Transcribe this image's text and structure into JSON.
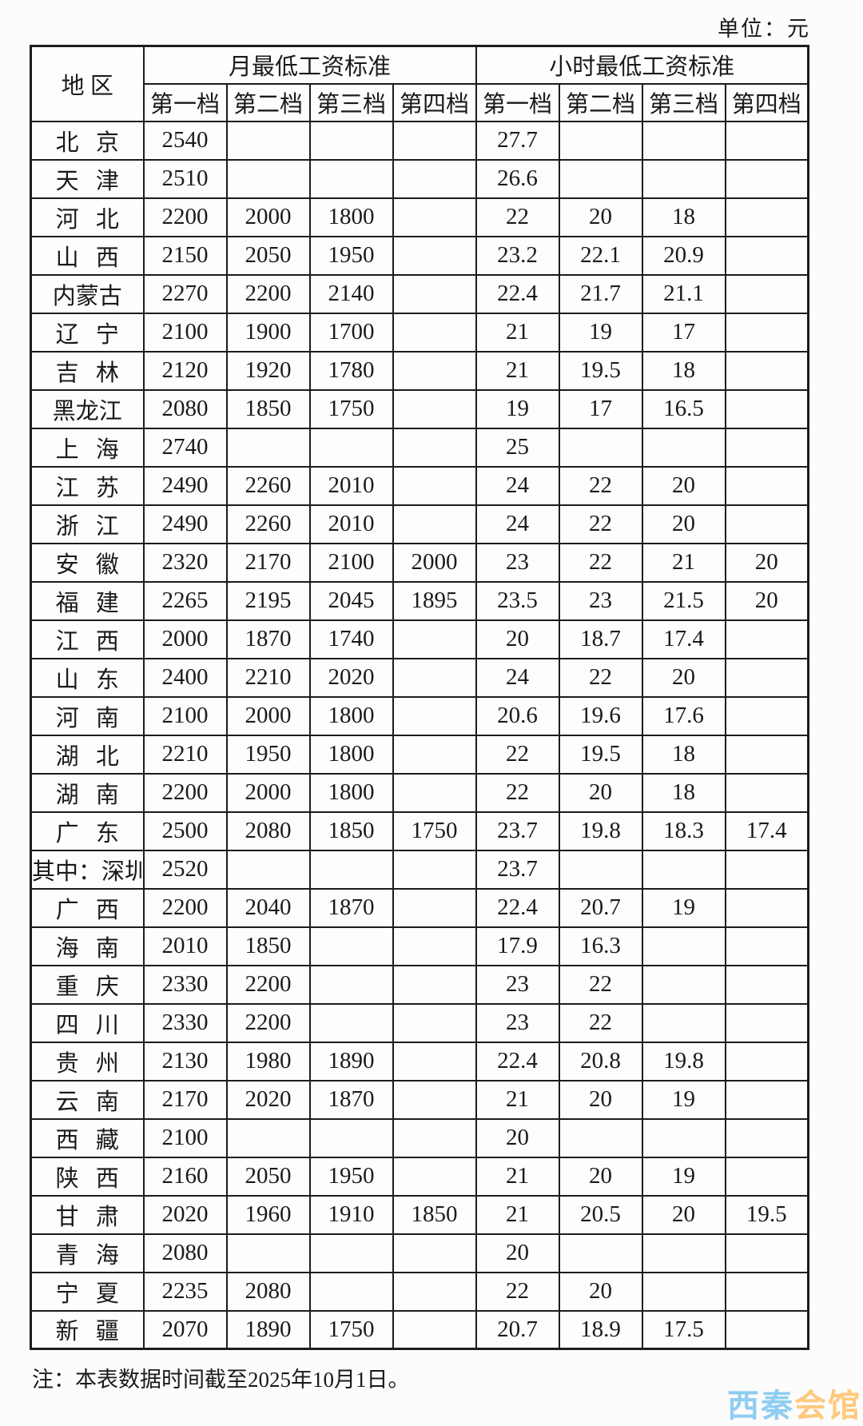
{
  "unit_label": "单位：元",
  "note": "注：本表数据时间截至2025年10月1日。",
  "watermark": {
    "part1": "西秦",
    "part2": "会馆",
    "color1": "#8fcdf2",
    "color2": "#ffc97e"
  },
  "table": {
    "region_header": "地 区",
    "monthly_group": "月最低工资标准",
    "hourly_group": "小时最低工资标准",
    "tier_labels": [
      "第一档",
      "第二档",
      "第三档",
      "第四档"
    ],
    "rows": [
      {
        "region": "北 京",
        "monthly": [
          "2540",
          "",
          "",
          ""
        ],
        "hourly": [
          "27.7",
          "",
          "",
          ""
        ]
      },
      {
        "region": "天 津",
        "monthly": [
          "2510",
          "",
          "",
          ""
        ],
        "hourly": [
          "26.6",
          "",
          "",
          ""
        ]
      },
      {
        "region": "河 北",
        "monthly": [
          "2200",
          "2000",
          "1800",
          ""
        ],
        "hourly": [
          "22",
          "20",
          "18",
          ""
        ]
      },
      {
        "region": "山 西",
        "monthly": [
          "2150",
          "2050",
          "1950",
          ""
        ],
        "hourly": [
          "23.2",
          "22.1",
          "20.9",
          ""
        ]
      },
      {
        "region": "内蒙古",
        "monthly": [
          "2270",
          "2200",
          "2140",
          ""
        ],
        "hourly": [
          "22.4",
          "21.7",
          "21.1",
          ""
        ]
      },
      {
        "region": "辽 宁",
        "monthly": [
          "2100",
          "1900",
          "1700",
          ""
        ],
        "hourly": [
          "21",
          "19",
          "17",
          ""
        ]
      },
      {
        "region": "吉 林",
        "monthly": [
          "2120",
          "1920",
          "1780",
          ""
        ],
        "hourly": [
          "21",
          "19.5",
          "18",
          ""
        ]
      },
      {
        "region": "黑龙江",
        "monthly": [
          "2080",
          "1850",
          "1750",
          ""
        ],
        "hourly": [
          "19",
          "17",
          "16.5",
          ""
        ]
      },
      {
        "region": "上 海",
        "monthly": [
          "2740",
          "",
          "",
          ""
        ],
        "hourly": [
          "25",
          "",
          "",
          ""
        ]
      },
      {
        "region": "江 苏",
        "monthly": [
          "2490",
          "2260",
          "2010",
          ""
        ],
        "hourly": [
          "24",
          "22",
          "20",
          ""
        ]
      },
      {
        "region": "浙 江",
        "monthly": [
          "2490",
          "2260",
          "2010",
          ""
        ],
        "hourly": [
          "24",
          "22",
          "20",
          ""
        ]
      },
      {
        "region": "安 徽",
        "monthly": [
          "2320",
          "2170",
          "2100",
          "2000"
        ],
        "hourly": [
          "23",
          "22",
          "21",
          "20"
        ]
      },
      {
        "region": "福 建",
        "monthly": [
          "2265",
          "2195",
          "2045",
          "1895"
        ],
        "hourly": [
          "23.5",
          "23",
          "21.5",
          "20"
        ]
      },
      {
        "region": "江 西",
        "monthly": [
          "2000",
          "1870",
          "1740",
          ""
        ],
        "hourly": [
          "20",
          "18.7",
          "17.4",
          ""
        ]
      },
      {
        "region": "山 东",
        "monthly": [
          "2400",
          "2210",
          "2020",
          ""
        ],
        "hourly": [
          "24",
          "22",
          "20",
          ""
        ]
      },
      {
        "region": "河 南",
        "monthly": [
          "2100",
          "2000",
          "1800",
          ""
        ],
        "hourly": [
          "20.6",
          "19.6",
          "17.6",
          ""
        ]
      },
      {
        "region": "湖 北",
        "monthly": [
          "2210",
          "1950",
          "1800",
          ""
        ],
        "hourly": [
          "22",
          "19.5",
          "18",
          ""
        ]
      },
      {
        "region": "湖 南",
        "monthly": [
          "2200",
          "2000",
          "1800",
          ""
        ],
        "hourly": [
          "22",
          "20",
          "18",
          ""
        ]
      },
      {
        "region": "广 东",
        "monthly": [
          "2500",
          "2080",
          "1850",
          "1750"
        ],
        "hourly": [
          "23.7",
          "19.8",
          "18.3",
          "17.4"
        ]
      },
      {
        "region": "其中：深圳",
        "monthly": [
          "2520",
          "",
          "",
          ""
        ],
        "hourly": [
          "23.7",
          "",
          "",
          ""
        ]
      },
      {
        "region": "广 西",
        "monthly": [
          "2200",
          "2040",
          "1870",
          ""
        ],
        "hourly": [
          "22.4",
          "20.7",
          "19",
          ""
        ]
      },
      {
        "region": "海 南",
        "monthly": [
          "2010",
          "1850",
          "",
          ""
        ],
        "hourly": [
          "17.9",
          "16.3",
          "",
          ""
        ]
      },
      {
        "region": "重 庆",
        "monthly": [
          "2330",
          "2200",
          "",
          ""
        ],
        "hourly": [
          "23",
          "22",
          "",
          ""
        ]
      },
      {
        "region": "四 川",
        "monthly": [
          "2330",
          "2200",
          "",
          ""
        ],
        "hourly": [
          "23",
          "22",
          "",
          ""
        ]
      },
      {
        "region": "贵 州",
        "monthly": [
          "2130",
          "1980",
          "1890",
          ""
        ],
        "hourly": [
          "22.4",
          "20.8",
          "19.8",
          ""
        ]
      },
      {
        "region": "云 南",
        "monthly": [
          "2170",
          "2020",
          "1870",
          ""
        ],
        "hourly": [
          "21",
          "20",
          "19",
          ""
        ]
      },
      {
        "region": "西 藏",
        "monthly": [
          "2100",
          "",
          "",
          ""
        ],
        "hourly": [
          "20",
          "",
          "",
          ""
        ]
      },
      {
        "region": "陕 西",
        "monthly": [
          "2160",
          "2050",
          "1950",
          ""
        ],
        "hourly": [
          "21",
          "20",
          "19",
          ""
        ]
      },
      {
        "region": "甘 肃",
        "monthly": [
          "2020",
          "1960",
          "1910",
          "1850"
        ],
        "hourly": [
          "21",
          "20.5",
          "20",
          "19.5"
        ]
      },
      {
        "region": "青 海",
        "monthly": [
          "2080",
          "",
          "",
          ""
        ],
        "hourly": [
          "20",
          "",
          "",
          ""
        ]
      },
      {
        "region": "宁 夏",
        "monthly": [
          "2235",
          "2080",
          "",
          ""
        ],
        "hourly": [
          "22",
          "20",
          "",
          ""
        ]
      },
      {
        "region": "新 疆",
        "monthly": [
          "2070",
          "1890",
          "1750",
          ""
        ],
        "hourly": [
          "20.7",
          "18.9",
          "17.5",
          ""
        ]
      }
    ]
  }
}
